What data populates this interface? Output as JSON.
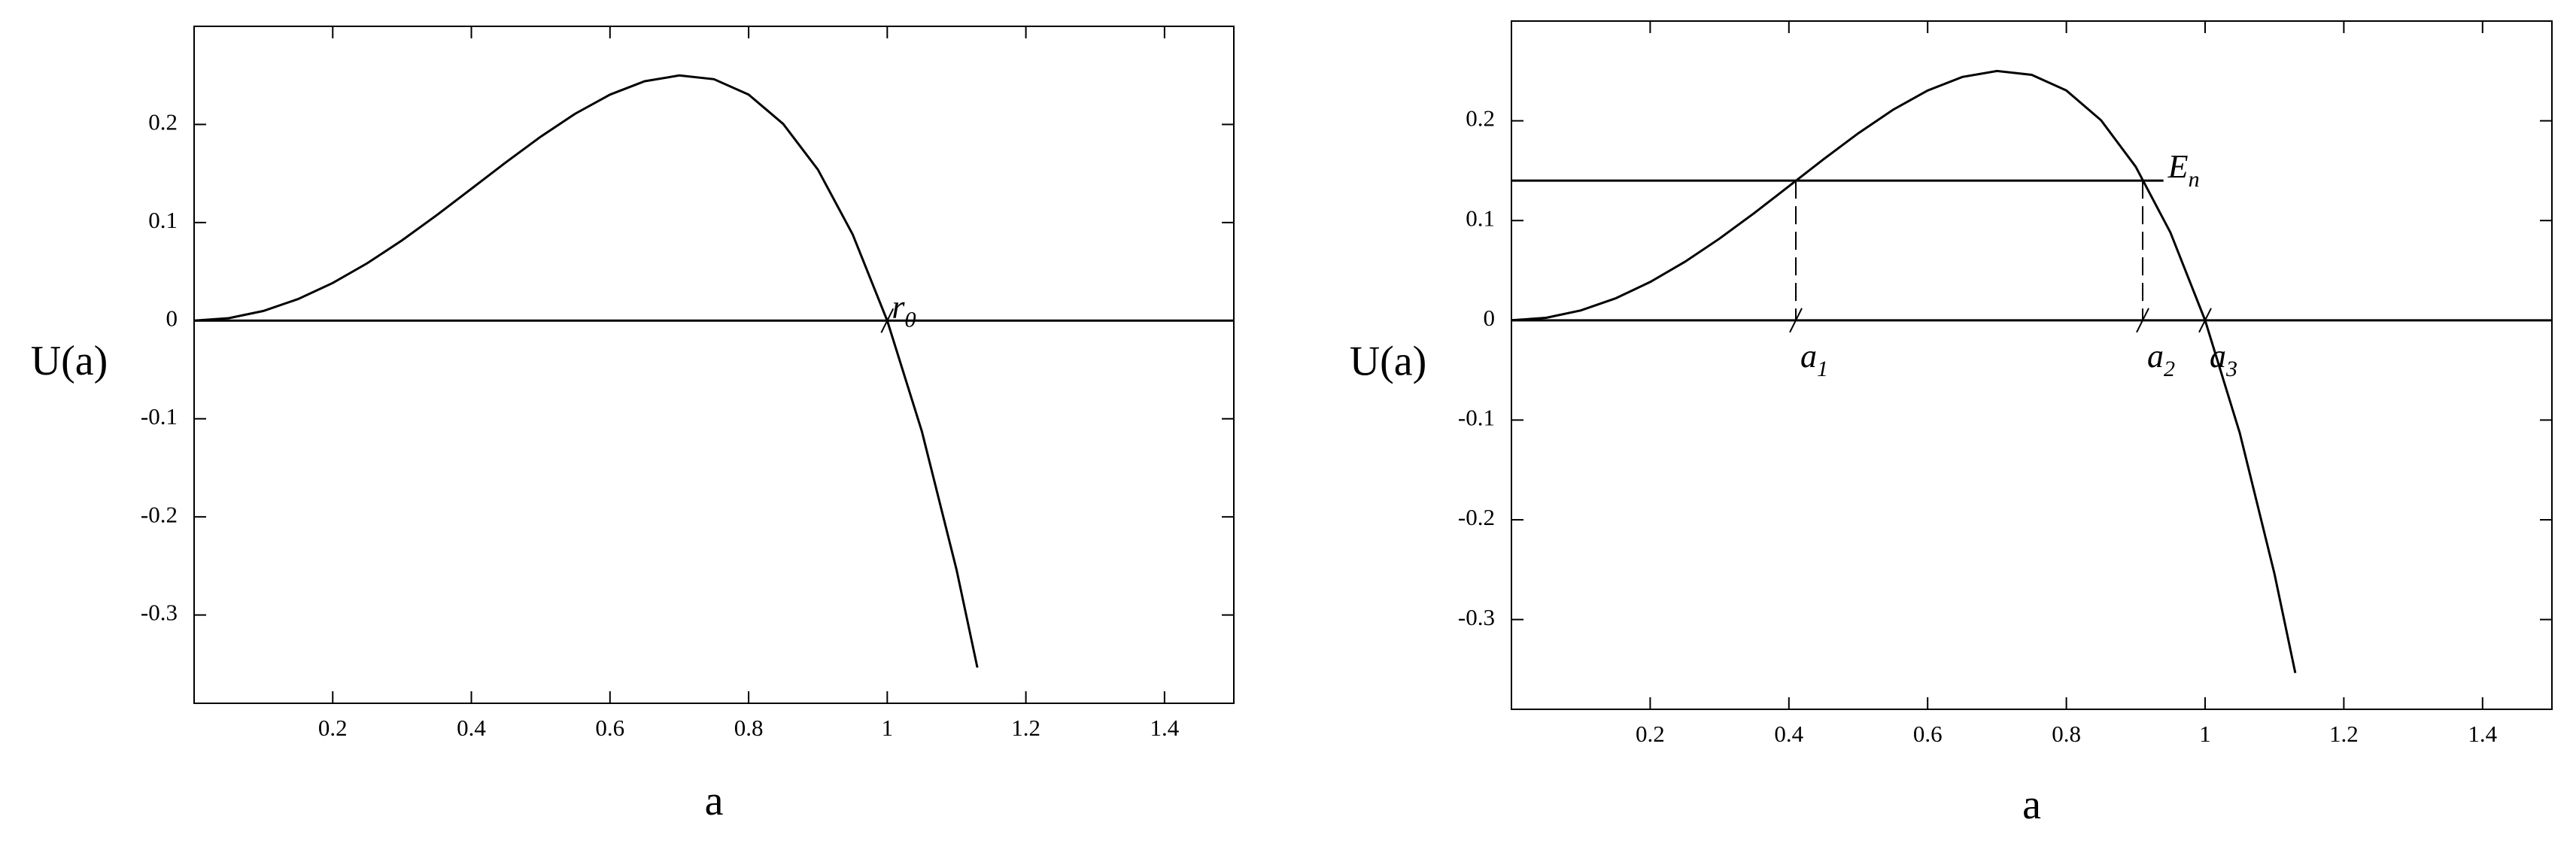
{
  "chart_data": [
    {
      "type": "line",
      "x_label": "a",
      "y_label": "U(a)",
      "x": [
        0,
        0.05,
        0.1,
        0.15,
        0.2,
        0.25,
        0.3,
        0.35,
        0.4,
        0.45,
        0.5,
        0.55,
        0.6,
        0.65,
        0.7,
        0.75,
        0.8,
        0.85,
        0.9,
        0.95,
        1.0,
        1.05,
        1.1,
        1.13
      ],
      "series": [
        {
          "color": "#000000",
          "values": [
            0,
            0.0025,
            0.0099,
            0.022,
            0.0384,
            0.0586,
            0.0819,
            0.1075,
            0.1344,
            0.1615,
            0.1875,
            0.211,
            0.2304,
            0.244,
            0.2499,
            0.2461,
            0.2304,
            0.2005,
            0.1539,
            0.088,
            0,
            -0.113,
            -0.2541,
            -0.3536
          ]
        }
      ],
      "xlim": [
        0,
        1.5
      ],
      "xticks": [
        0.2,
        0.4,
        0.6,
        0.8,
        1,
        1.2,
        1.4
      ],
      "ylim": [
        -0.39,
        0.3
      ],
      "yticks": [
        -0.3,
        -0.2,
        -0.1,
        0,
        0.1,
        0.2
      ],
      "hlines": [
        0
      ],
      "annotations": [
        {
          "text": "r",
          "sub": "0",
          "x": 1,
          "y": 0
        }
      ]
    },
    {
      "type": "line",
      "x_label": "a",
      "y_label": "U(a)",
      "x": [
        0,
        0.05,
        0.1,
        0.15,
        0.2,
        0.25,
        0.3,
        0.35,
        0.4,
        0.45,
        0.5,
        0.55,
        0.6,
        0.65,
        0.7,
        0.75,
        0.8,
        0.85,
        0.9,
        0.95,
        1.0,
        1.05,
        1.1,
        1.13
      ],
      "series": [
        {
          "color": "#000000",
          "values": [
            0,
            0.0025,
            0.0099,
            0.022,
            0.0384,
            0.0586,
            0.0819,
            0.1075,
            0.1344,
            0.1615,
            0.1875,
            0.211,
            0.2304,
            0.244,
            0.2499,
            0.2461,
            0.2304,
            0.2005,
            0.1539,
            0.088,
            0,
            -0.113,
            -0.2541,
            -0.3536
          ]
        }
      ],
      "xlim": [
        0,
        1.5
      ],
      "xticks": [
        0.2,
        0.4,
        0.6,
        0.8,
        1,
        1.2,
        1.4
      ],
      "ylim": [
        -0.39,
        0.3
      ],
      "yticks": [
        -0.3,
        -0.2,
        -0.1,
        0,
        0.1,
        0.2
      ],
      "hlines": [
        0
      ],
      "energy_level": {
        "y": 0.14,
        "x_end": 0.94
      },
      "dashed_lines": [
        0.41,
        0.91
      ],
      "annotations": [
        {
          "text": "a",
          "sub": "1",
          "x": 0.41,
          "y": 0
        },
        {
          "text": "a",
          "sub": "2",
          "x": 0.91,
          "y": 0
        },
        {
          "text": "a",
          "sub": "3",
          "x": 1,
          "y": 0
        },
        {
          "text": "E",
          "sub": "n",
          "x": 0.94,
          "y": 0.14
        }
      ]
    }
  ]
}
